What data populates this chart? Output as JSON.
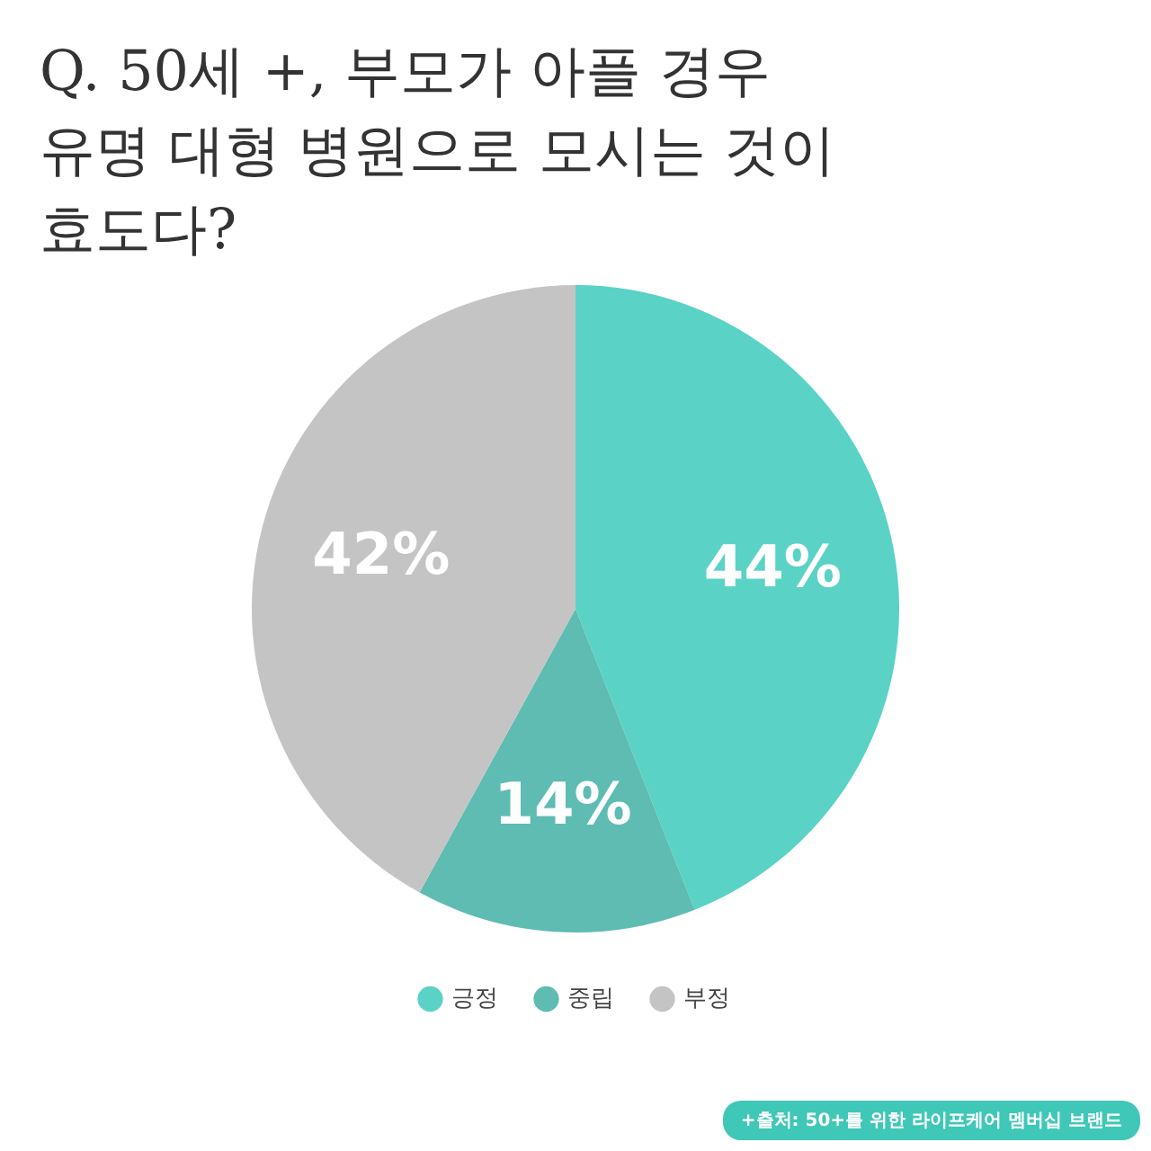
{
  "chart_data": {
    "type": "pie",
    "title": "Q. 50세 +, 부모가 아플 경우\n유명 대형 병원으로 모시는 것이\n효도다?",
    "categories": [
      "긍정",
      "중립",
      "부정"
    ],
    "values": [
      44,
      14,
      42
    ],
    "colors": [
      "#5ad3c6",
      "#5fbcb2",
      "#c4c4c4"
    ],
    "value_labels": [
      "44%",
      "14%",
      "42%"
    ],
    "legend": "bottom",
    "annotations": [
      "+출처: 50+를 위한 라이프케어 멤버십 브랜드"
    ]
  }
}
